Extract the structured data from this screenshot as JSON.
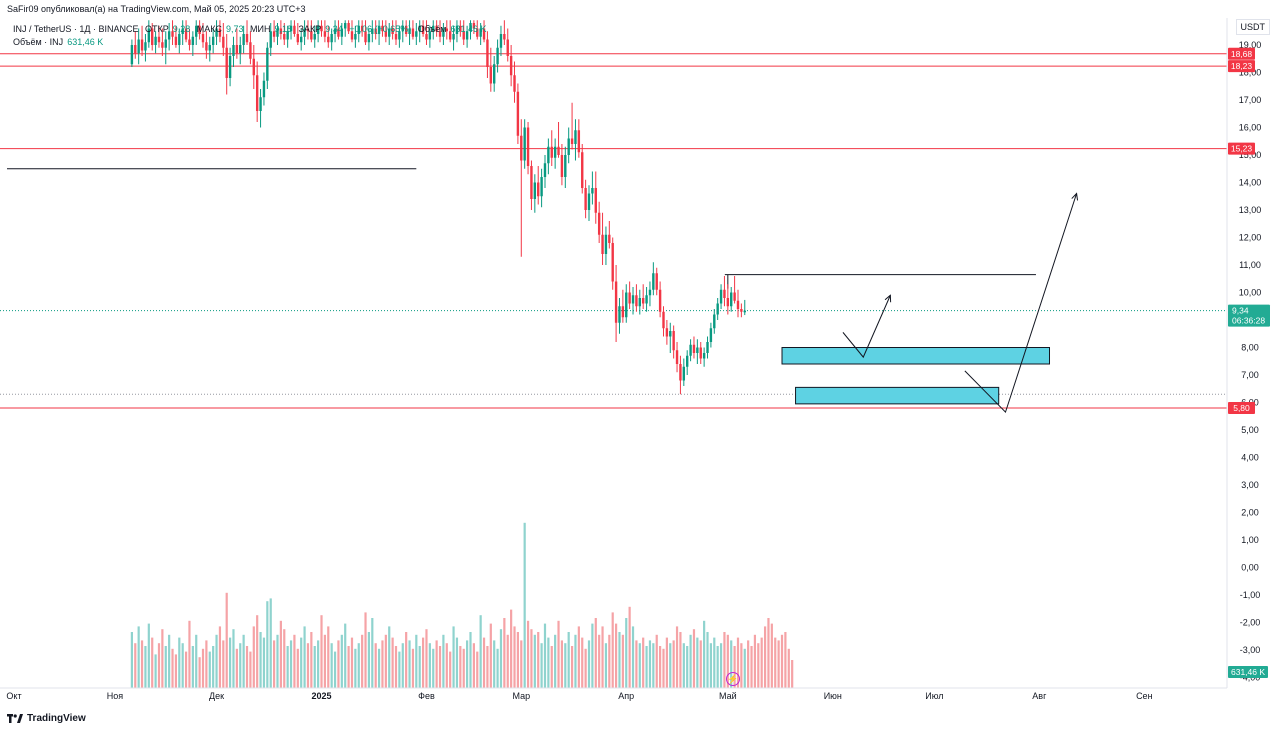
{
  "header": {
    "published": "SaFir09 опубликовал(а) на TradingView.com, Май 05, 2025 20:23 UTC+3"
  },
  "legend": {
    "symbol": "INJ / TetherUS · 1Д · BINANCE",
    "open_label": "ОТКР",
    "open_value": "9,28",
    "high_label": "МАКС",
    "high_value": "9,73",
    "low_label": "МИН",
    "low_value": "9,18",
    "close_label": "ЗАКР",
    "close_value": "9,34",
    "change": "+0,06 (+0,65%)",
    "volume_label": "Объём",
    "volume_value": "631,46 K",
    "volume_series_label": "Объём · INJ",
    "volume_series_value": "631,46 K"
  },
  "currency": "USDT",
  "footer": {
    "brand": "TradingView"
  },
  "colors": {
    "up": "#089981",
    "down": "#f23645",
    "vol_up": "#8fd3ce",
    "vol_down": "#f5a3a6",
    "zone": "#5ed2e3",
    "zone_border": "#131722",
    "level": "#f23645",
    "price_tag": "#22ab94"
  },
  "chart_data": {
    "type": "candlestick",
    "title": "INJ / TetherUS · 1Д · BINANCE",
    "ylim": [
      -4.2,
      19.8
    ],
    "y_ticks": [
      "19,00",
      "18,00",
      "17,00",
      "16,00",
      "15,00",
      "14,00",
      "13,00",
      "12,00",
      "11,00",
      "10,00",
      "9,00",
      "8,00",
      "7,00",
      "6,00",
      "5,00",
      "4,00",
      "3,00",
      "2,00",
      "1,00",
      "0,00",
      "-1,00",
      "-2,00",
      "-3,00",
      "-4,00"
    ],
    "x_labels": [
      "Окт",
      "Ноя",
      "Дек",
      "2025",
      "Фев",
      "Мар",
      "Апр",
      "Май",
      "Июн",
      "Июл",
      "Авг",
      "Сен"
    ],
    "x_label_days": [
      0,
      31,
      61,
      92,
      123,
      151,
      182,
      212,
      243,
      273,
      304,
      335
    ],
    "last_candle_day": 217,
    "levels": [
      {
        "value": 18.68,
        "label": "18,68"
      },
      {
        "value": 18.23,
        "label": "18,23"
      },
      {
        "value": 15.23,
        "label": "15,23"
      },
      {
        "value": 5.8,
        "label": "5,80"
      }
    ],
    "last_price": {
      "value": 9.34,
      "label": "9,34",
      "countdown": "06:36:28"
    },
    "volume_last": "631,46 K",
    "dotted_levels": [
      9.34,
      6.3
    ],
    "horizontal_rays": [
      {
        "value": 14.5,
        "day_from": 0,
        "day_to": 120
      },
      {
        "value": 10.65,
        "day_from": 212,
        "day_to": 303
      }
    ],
    "zones": [
      {
        "from": 7.4,
        "to": 8.0,
        "day_from": 228,
        "day_to": 307
      },
      {
        "from": 5.95,
        "to": 6.55,
        "day_from": 232,
        "day_to": 292
      }
    ],
    "paths": [
      {
        "points": [
          [
            246,
            8.55
          ],
          [
            252,
            7.65
          ],
          [
            260,
            9.9
          ]
        ]
      },
      {
        "points": [
          [
            282,
            7.15
          ],
          [
            294,
            5.65
          ],
          [
            315,
            13.6
          ]
        ]
      }
    ],
    "ohlc": [
      [
        18.3,
        19.2,
        18.2,
        19.0
      ],
      [
        19.0,
        19.5,
        18.5,
        18.7
      ],
      [
        18.7,
        19.6,
        18.3,
        19.2
      ],
      [
        19.2,
        19.7,
        18.6,
        18.8
      ],
      [
        18.8,
        19.4,
        18.4,
        19.1
      ],
      [
        19.1,
        19.9,
        18.9,
        19.6
      ],
      [
        19.6,
        19.8,
        18.8,
        19.0
      ],
      [
        19.0,
        19.5,
        18.7,
        19.3
      ],
      [
        19.3,
        19.7,
        18.9,
        19.1
      ],
      [
        19.1,
        19.6,
        18.6,
        18.9
      ],
      [
        18.9,
        19.5,
        18.3,
        19.2
      ],
      [
        19.2,
        19.8,
        18.8,
        19.5
      ],
      [
        19.5,
        19.9,
        19.0,
        19.3
      ],
      [
        19.3,
        19.7,
        18.9,
        19.0
      ],
      [
        19.0,
        19.6,
        18.7,
        19.4
      ],
      [
        19.4,
        19.9,
        19.0,
        19.6
      ],
      [
        19.6,
        19.9,
        19.1,
        19.2
      ],
      [
        19.2,
        19.6,
        18.8,
        19.0
      ],
      [
        19.0,
        19.5,
        18.6,
        19.3
      ],
      [
        19.3,
        19.9,
        19.0,
        19.7
      ],
      [
        19.7,
        19.9,
        19.2,
        19.4
      ],
      [
        19.4,
        19.8,
        18.9,
        19.1
      ],
      [
        19.1,
        19.5,
        18.5,
        18.8
      ],
      [
        18.8,
        19.3,
        18.4,
        19.0
      ],
      [
        19.0,
        19.6,
        18.7,
        19.3
      ],
      [
        19.3,
        19.9,
        19.0,
        19.6
      ],
      [
        19.6,
        19.9,
        19.1,
        19.3
      ],
      [
        19.3,
        19.8,
        18.6,
        18.9
      ],
      [
        18.9,
        19.4,
        17.2,
        17.8
      ],
      [
        17.8,
        18.9,
        17.5,
        18.6
      ],
      [
        18.6,
        19.3,
        18.2,
        19.0
      ],
      [
        19.0,
        19.6,
        18.5,
        18.7
      ],
      [
        18.7,
        19.3,
        18.3,
        19.0
      ],
      [
        19.0,
        19.7,
        18.7,
        19.4
      ],
      [
        19.4,
        19.9,
        19.0,
        19.1
      ],
      [
        19.1,
        19.5,
        18.3,
        18.5
      ],
      [
        18.5,
        19.0,
        17.4,
        17.9
      ],
      [
        17.9,
        18.4,
        16.2,
        16.6
      ],
      [
        16.6,
        17.4,
        16.0,
        17.1
      ],
      [
        17.1,
        18.0,
        16.8,
        17.7
      ],
      [
        17.7,
        19.1,
        17.4,
        18.9
      ],
      [
        18.9,
        19.8,
        18.6,
        19.5
      ],
      [
        19.5,
        19.9,
        19.1,
        19.3
      ],
      [
        19.3,
        19.8,
        19.0,
        19.6
      ],
      [
        19.6,
        19.9,
        19.2,
        19.4
      ],
      [
        19.4,
        19.8,
        19.0,
        19.2
      ],
      [
        19.2,
        19.7,
        18.9,
        19.5
      ],
      [
        19.5,
        19.9,
        19.2,
        19.7
      ],
      [
        19.7,
        19.9,
        19.3,
        19.4
      ],
      [
        19.4,
        19.8,
        19.0,
        19.1
      ],
      [
        19.1,
        19.6,
        18.8,
        19.3
      ],
      [
        19.3,
        19.9,
        19.0,
        19.6
      ],
      [
        19.6,
        19.9,
        19.2,
        19.5
      ],
      [
        19.5,
        19.9,
        19.1,
        19.2
      ],
      [
        19.2,
        19.7,
        18.9,
        19.4
      ],
      [
        19.4,
        19.9,
        19.1,
        19.7
      ],
      [
        19.7,
        19.9,
        19.3,
        19.5
      ],
      [
        19.5,
        19.9,
        19.1,
        19.3
      ],
      [
        19.3,
        19.7,
        18.9,
        19.1
      ],
      [
        19.1,
        19.6,
        18.8,
        19.4
      ],
      [
        19.4,
        19.9,
        19.1,
        19.6
      ],
      [
        19.6,
        19.9,
        19.2,
        19.3
      ],
      [
        19.3,
        19.8,
        19.0,
        19.6
      ],
      [
        19.6,
        19.9,
        19.3,
        19.8
      ],
      [
        19.8,
        19.9,
        19.4,
        19.5
      ],
      [
        19.5,
        19.9,
        19.1,
        19.2
      ],
      [
        19.2,
        19.7,
        18.9,
        19.4
      ],
      [
        19.4,
        19.9,
        19.1,
        19.7
      ],
      [
        19.7,
        19.9,
        19.3,
        19.5
      ],
      [
        19.5,
        19.9,
        19.0,
        19.1
      ],
      [
        19.1,
        19.6,
        18.8,
        19.4
      ],
      [
        19.4,
        19.9,
        19.1,
        19.6
      ],
      [
        19.6,
        19.9,
        19.2,
        19.4
      ],
      [
        19.4,
        19.9,
        19.0,
        19.7
      ],
      [
        19.7,
        19.9,
        19.3,
        19.5
      ],
      [
        19.5,
        19.9,
        19.1,
        19.3
      ],
      [
        19.3,
        19.8,
        19.0,
        19.6
      ],
      [
        19.6,
        19.9,
        19.2,
        19.4
      ],
      [
        19.4,
        19.9,
        19.0,
        19.2
      ],
      [
        19.2,
        19.7,
        18.9,
        19.5
      ],
      [
        19.5,
        19.9,
        19.1,
        19.7
      ],
      [
        19.7,
        19.9,
        19.3,
        19.4
      ],
      [
        19.4,
        19.9,
        19.0,
        19.6
      ],
      [
        19.6,
        19.9,
        19.2,
        19.3
      ],
      [
        19.3,
        19.8,
        19.0,
        19.5
      ],
      [
        19.5,
        19.9,
        19.1,
        19.7
      ],
      [
        19.7,
        19.9,
        19.3,
        19.4
      ],
      [
        19.4,
        19.9,
        19.0,
        19.2
      ],
      [
        19.2,
        19.7,
        18.9,
        19.5
      ],
      [
        19.5,
        19.9,
        19.2,
        19.7
      ],
      [
        19.7,
        19.9,
        19.3,
        19.5
      ],
      [
        19.5,
        19.9,
        19.1,
        19.3
      ],
      [
        19.3,
        19.8,
        19.0,
        19.6
      ],
      [
        19.6,
        19.9,
        19.2,
        19.5
      ],
      [
        19.5,
        19.9,
        19.1,
        19.2
      ],
      [
        19.2,
        19.7,
        18.8,
        19.4
      ],
      [
        19.4,
        19.9,
        19.1,
        19.7
      ],
      [
        19.7,
        19.9,
        19.3,
        19.5
      ],
      [
        19.5,
        19.9,
        19.0,
        19.2
      ],
      [
        19.2,
        19.7,
        18.9,
        19.5
      ],
      [
        19.5,
        19.9,
        19.2,
        19.8
      ],
      [
        19.8,
        19.9,
        19.4,
        19.6
      ],
      [
        19.6,
        19.9,
        19.2,
        19.3
      ],
      [
        19.3,
        19.8,
        19.0,
        19.6
      ],
      [
        19.6,
        19.9,
        19.1,
        19.2
      ],
      [
        19.2,
        19.5,
        17.8,
        18.2
      ],
      [
        18.2,
        18.9,
        17.3,
        17.6
      ],
      [
        17.6,
        18.6,
        17.3,
        18.3
      ],
      [
        18.3,
        19.2,
        18.0,
        18.9
      ],
      [
        18.9,
        19.7,
        18.6,
        19.4
      ],
      [
        19.4,
        19.9,
        19.0,
        19.2
      ],
      [
        19.2,
        19.6,
        18.4,
        18.6
      ],
      [
        18.6,
        19.0,
        17.5,
        17.9
      ],
      [
        17.9,
        18.4,
        16.9,
        17.3
      ],
      [
        17.3,
        17.6,
        15.4,
        15.7
      ],
      [
        15.7,
        16.3,
        11.3,
        14.8
      ],
      [
        14.8,
        16.3,
        14.5,
        16.0
      ],
      [
        16.0,
        16.2,
        14.3,
        14.6
      ],
      [
        14.6,
        14.8,
        13.0,
        13.4
      ],
      [
        13.4,
        14.3,
        12.9,
        14.0
      ],
      [
        14.0,
        14.6,
        13.2,
        13.5
      ],
      [
        13.5,
        14.5,
        13.1,
        14.2
      ],
      [
        14.2,
        15.0,
        13.8,
        14.7
      ],
      [
        14.7,
        15.6,
        14.3,
        15.3
      ],
      [
        15.3,
        15.9,
        14.6,
        14.9
      ],
      [
        14.9,
        15.6,
        14.5,
        15.3
      ],
      [
        15.3,
        16.2,
        14.9,
        15.0
      ],
      [
        15.0,
        15.4,
        13.9,
        14.2
      ],
      [
        14.2,
        15.3,
        13.8,
        15.0
      ],
      [
        15.0,
        16.0,
        14.7,
        15.6
      ],
      [
        15.6,
        16.9,
        15.2,
        15.4
      ],
      [
        15.4,
        16.3,
        14.8,
        15.9
      ],
      [
        15.9,
        16.3,
        14.9,
        15.1
      ],
      [
        15.1,
        15.4,
        13.6,
        13.8
      ],
      [
        13.8,
        14.1,
        12.7,
        13.0
      ],
      [
        13.0,
        13.9,
        12.6,
        13.6
      ],
      [
        13.6,
        14.4,
        13.2,
        13.8
      ],
      [
        13.8,
        14.4,
        12.5,
        12.9
      ],
      [
        12.9,
        13.3,
        11.8,
        12.1
      ],
      [
        12.1,
        12.9,
        11.0,
        11.4
      ],
      [
        11.4,
        12.4,
        11.0,
        12.1
      ],
      [
        12.1,
        12.6,
        11.6,
        11.8
      ],
      [
        11.8,
        12.0,
        10.1,
        10.4
      ],
      [
        10.4,
        11.0,
        8.2,
        8.9
      ],
      [
        8.9,
        9.8,
        8.5,
        9.5
      ],
      [
        9.5,
        10.1,
        8.9,
        9.1
      ],
      [
        9.1,
        10.3,
        8.9,
        10.0
      ],
      [
        10.0,
        10.4,
        9.4,
        9.6
      ],
      [
        9.6,
        10.2,
        9.2,
        9.9
      ],
      [
        9.9,
        10.3,
        9.3,
        9.5
      ],
      [
        9.5,
        10.1,
        9.2,
        9.8
      ],
      [
        9.8,
        10.3,
        9.4,
        9.6
      ],
      [
        9.6,
        10.2,
        9.3,
        9.9
      ],
      [
        9.9,
        10.4,
        9.5,
        10.1
      ],
      [
        10.1,
        11.1,
        9.9,
        10.7
      ],
      [
        10.7,
        10.9,
        9.9,
        10.1
      ],
      [
        10.1,
        10.4,
        9.1,
        9.3
      ],
      [
        9.3,
        9.5,
        8.4,
        8.7
      ],
      [
        8.7,
        9.0,
        8.1,
        8.4
      ],
      [
        8.4,
        8.9,
        7.8,
        8.6
      ],
      [
        8.6,
        8.8,
        7.6,
        7.9
      ],
      [
        7.9,
        8.2,
        7.1,
        7.4
      ],
      [
        7.4,
        7.7,
        6.3,
        6.8
      ],
      [
        6.8,
        7.6,
        6.6,
        7.3
      ],
      [
        7.3,
        7.9,
        7.0,
        7.7
      ],
      [
        7.7,
        8.3,
        7.5,
        8.1
      ],
      [
        8.1,
        8.4,
        7.6,
        7.8
      ],
      [
        7.8,
        8.3,
        7.4,
        8.0
      ],
      [
        8.0,
        8.2,
        7.4,
        7.6
      ],
      [
        7.6,
        8.0,
        7.3,
        7.8
      ],
      [
        7.8,
        8.4,
        7.6,
        8.2
      ],
      [
        8.2,
        8.9,
        8.0,
        8.7
      ],
      [
        8.7,
        9.4,
        8.5,
        9.2
      ],
      [
        9.2,
        9.8,
        9.0,
        9.6
      ],
      [
        9.6,
        10.3,
        9.4,
        10.1
      ],
      [
        10.1,
        10.6,
        9.5,
        9.8
      ],
      [
        9.8,
        10.3,
        9.2,
        9.5
      ],
      [
        9.5,
        10.2,
        9.3,
        10.0
      ],
      [
        10.0,
        10.6,
        9.6,
        9.7
      ],
      [
        9.7,
        10.1,
        9.1,
        9.4
      ],
      [
        9.4,
        9.6,
        9.1,
        9.3
      ],
      [
        9.28,
        9.73,
        9.18,
        9.34
      ]
    ],
    "volume": [
      2.0,
      1.6,
      2.2,
      1.7,
      1.5,
      2.3,
      1.8,
      1.2,
      1.6,
      2.1,
      1.5,
      1.9,
      1.4,
      1.2,
      1.8,
      1.6,
      1.3,
      2.4,
      1.5,
      1.9,
      1.1,
      1.4,
      1.7,
      1.3,
      1.5,
      1.9,
      2.2,
      1.7,
      3.4,
      1.8,
      2.1,
      1.4,
      1.6,
      1.9,
      1.5,
      1.3,
      2.2,
      2.6,
      2.0,
      1.8,
      3.1,
      3.2,
      1.7,
      1.9,
      2.4,
      2.1,
      1.5,
      1.7,
      1.9,
      1.4,
      1.8,
      2.2,
      1.6,
      2.0,
      1.5,
      1.7,
      2.6,
      1.9,
      2.2,
      1.6,
      1.3,
      1.7,
      1.9,
      2.3,
      1.5,
      1.8,
      1.4,
      1.6,
      1.9,
      2.7,
      2.0,
      2.5,
      1.6,
      1.4,
      1.7,
      1.9,
      2.2,
      1.8,
      1.5,
      1.3,
      1.6,
      2.0,
      1.7,
      1.4,
      1.9,
      1.5,
      1.8,
      2.1,
      1.6,
      1.4,
      1.7,
      1.5,
      1.9,
      1.6,
      1.3,
      2.2,
      1.8,
      1.5,
      1.4,
      1.7,
      2.0,
      1.6,
      1.3,
      2.6,
      1.8,
      1.5,
      2.3,
      1.7,
      1.4,
      2.1,
      2.5,
      1.9,
      2.8,
      2.2,
      2.0,
      1.7,
      5.9,
      2.4,
      2.1,
      1.9,
      2.0,
      1.6,
      2.3,
      1.8,
      1.5,
      1.9,
      2.4,
      1.7,
      1.6,
      2.0,
      1.5,
      1.9,
      2.2,
      1.8,
      1.4,
      1.7,
      2.3,
      2.5,
      1.9,
      2.2,
      1.6,
      1.9,
      2.7,
      2.3,
      2.0,
      1.9,
      2.5,
      2.9,
      2.2,
      1.7,
      1.6,
      1.8,
      1.5,
      1.7,
      1.6,
      1.9,
      1.5,
      1.4,
      1.8,
      1.6,
      1.7,
      2.2,
      2.0,
      1.6,
      1.5,
      1.9,
      2.1,
      1.8,
      1.7,
      2.4,
      2.0,
      1.6,
      1.8,
      1.5,
      1.6,
      2.0,
      1.9,
      1.7,
      1.5,
      1.8,
      1.6,
      1.4,
      1.7,
      1.5,
      1.9,
      1.6,
      1.8,
      2.2,
      2.5,
      2.3,
      1.8,
      1.7,
      1.9,
      2.0,
      1.4,
      1.0
    ]
  }
}
